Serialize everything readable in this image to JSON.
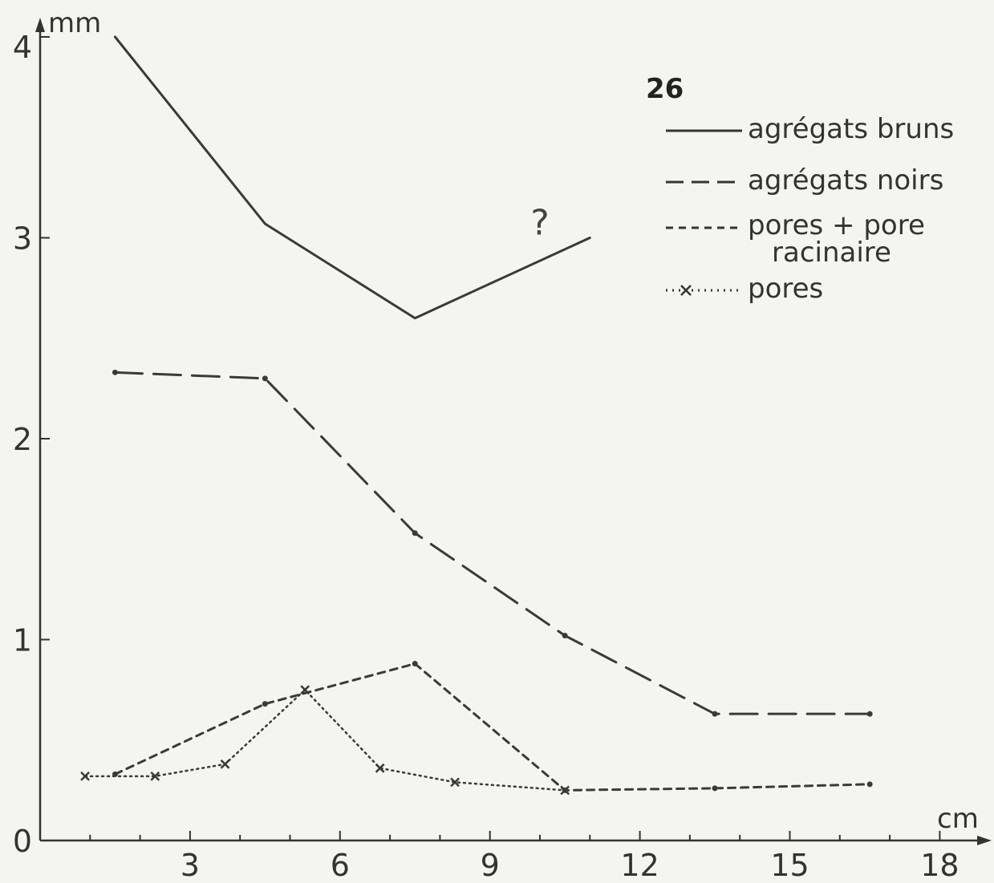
{
  "chart_data": {
    "type": "line",
    "title": "",
    "xlabel": "cm",
    "ylabel": "mm",
    "xlim": [
      0,
      18.5
    ],
    "ylim": [
      0,
      4
    ],
    "x_ticks": [
      3,
      6,
      9,
      12,
      15,
      18
    ],
    "y_ticks": [
      0,
      1,
      2,
      3,
      4
    ],
    "grid": false,
    "legend": {
      "title": "26",
      "placement": "top-right",
      "entries": [
        {
          "name": "agrégats bruns",
          "style": "solid"
        },
        {
          "name": "agrégats noirs",
          "style": "long-dash"
        },
        {
          "name_lines": [
            "pores + pore",
            "racinaire"
          ],
          "style": "short-dash"
        },
        {
          "name": "pores",
          "style": "dotted-cross"
        }
      ]
    },
    "annotations": [
      {
        "text": "?",
        "x": 10.0,
        "y": 3.0
      }
    ],
    "series": [
      {
        "name": "agrégats bruns",
        "style": "solid",
        "marker": "none",
        "x": [
          1.5,
          4.5,
          7.5,
          11.0
        ],
        "y": [
          4.0,
          3.07,
          2.6,
          3.0
        ]
      },
      {
        "name": "agrégats noirs",
        "style": "long-dash",
        "marker": "dot",
        "x": [
          1.5,
          4.5,
          7.5,
          10.5,
          13.5,
          16.6
        ],
        "y": [
          2.33,
          2.3,
          1.53,
          1.02,
          0.63,
          0.63
        ]
      },
      {
        "name": "pores + pore racinaire",
        "style": "short-dash",
        "marker": "dot",
        "x": [
          1.5,
          4.5,
          7.5,
          10.5,
          13.5,
          16.6
        ],
        "y": [
          0.33,
          0.68,
          0.88,
          0.25,
          0.26,
          0.28
        ]
      },
      {
        "name": "pores",
        "style": "dotted",
        "marker": "cross",
        "x": [
          0.9,
          2.3,
          3.7,
          5.3,
          6.8,
          8.3,
          10.5
        ],
        "y": [
          0.32,
          0.32,
          0.38,
          0.75,
          0.36,
          0.29,
          0.25
        ]
      }
    ]
  }
}
